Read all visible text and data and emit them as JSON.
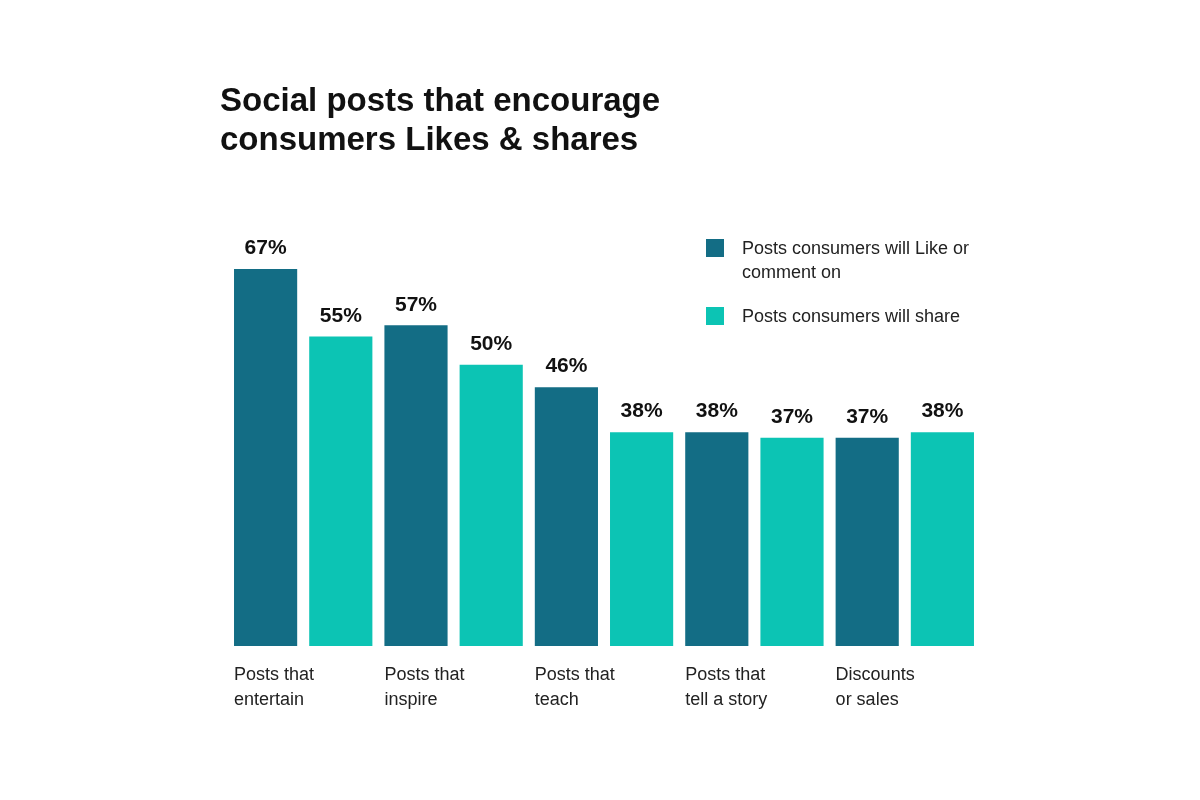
{
  "chart_data": {
    "type": "bar",
    "title": "Social posts that encourage\nconsumers Likes & shares",
    "categories": [
      "Posts that\nentertain",
      "Posts that\ninspire",
      "Posts that\nteach",
      "Posts that\ntell a story",
      "Discounts\nor sales"
    ],
    "series": [
      {
        "name": "Posts consumers will Like or comment on",
        "color": "#136d85",
        "values": [
          67,
          57,
          46,
          38,
          37
        ],
        "value_labels": [
          "67%",
          "57%",
          "46%",
          "38%",
          "37%"
        ]
      },
      {
        "name": "Posts consumers will share",
        "color": "#0cc4b4",
        "values": [
          55,
          50,
          38,
          37,
          38
        ],
        "value_labels": [
          "55%",
          "50%",
          "38%",
          "37%",
          "38%"
        ]
      }
    ],
    "relative": false,
    "grid": false,
    "legend": "top right"
  }
}
